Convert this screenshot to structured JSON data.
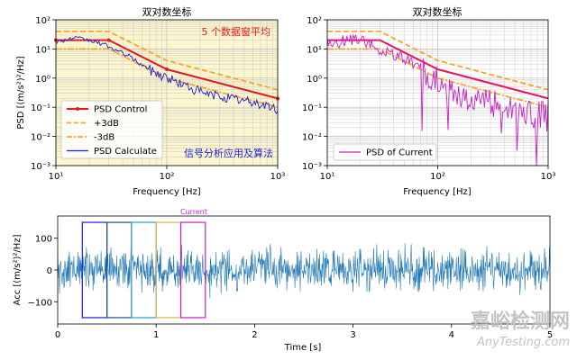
{
  "chart_data": [
    {
      "type": "line",
      "title": "双对数坐标",
      "xlabel": "Frequency [Hz]",
      "ylabel": "PSD [(m/s²)²/Hz]",
      "xscale": "log",
      "yscale": "log",
      "xlim": [
        10,
        1000
      ],
      "ylim": [
        0.001,
        100
      ],
      "xticks": [
        "10¹",
        "10²",
        "10³"
      ],
      "yticks": [
        "10⁻³",
        "10⁻²",
        "10⁻¹",
        "10⁰",
        "10¹",
        "10²"
      ],
      "annotation_top": "5 个数据窗平均",
      "annotation_bottom": "信号分析应用及算法",
      "background": "#fbf6cf",
      "legend": [
        "PSD Control",
        "+3dB",
        "-3dB",
        "PSD Calculate"
      ],
      "series": [
        {
          "name": "PSD Control",
          "color": "#e41a1c",
          "points": [
            [
              10,
              20
            ],
            [
              30,
              20
            ],
            [
              100,
              2
            ],
            [
              1000,
              0.2
            ]
          ]
        },
        {
          "name": "+3dB",
          "color": "#f5a623",
          "points": [
            [
              10,
              40
            ],
            [
              30,
              40
            ],
            [
              100,
              4
            ],
            [
              1000,
              0.4
            ]
          ]
        },
        {
          "name": "-3dB",
          "color": "#f5a623",
          "points": [
            [
              10,
              10
            ],
            [
              30,
              10
            ],
            [
              100,
              1
            ],
            [
              1000,
              0.1
            ]
          ]
        },
        {
          "name": "PSD Calculate",
          "color": "#1f1fd6",
          "points": [
            [
              10,
              18
            ],
            [
              15,
              24
            ],
            [
              20,
              20
            ],
            [
              28,
              14
            ],
            [
              35,
              9
            ],
            [
              45,
              6
            ],
            [
              55,
              3.5
            ],
            [
              70,
              2
            ],
            [
              90,
              1.3
            ],
            [
              120,
              0.8
            ],
            [
              160,
              0.5
            ],
            [
              220,
              0.3
            ],
            [
              300,
              0.25
            ],
            [
              400,
              0.2
            ],
            [
              600,
              0.15
            ],
            [
              800,
              0.12
            ],
            [
              1000,
              0.08
            ]
          ]
        }
      ]
    },
    {
      "type": "line",
      "title": "双对数坐标",
      "xlabel": "Frequency [Hz]",
      "xscale": "log",
      "yscale": "log",
      "xlim": [
        10,
        1000
      ],
      "ylim": [
        0.001,
        100
      ],
      "xticks": [
        "10¹",
        "10²",
        "10³"
      ],
      "yticks": [
        "10⁻³",
        "10⁻²",
        "10⁻¹",
        "10⁰",
        "10¹",
        "10²"
      ],
      "legend": [
        "PSD of Current"
      ],
      "series": [
        {
          "name": "PSD Control",
          "color": "#e4165a",
          "points": [
            [
              10,
              20
            ],
            [
              30,
              20
            ],
            [
              100,
              2
            ],
            [
              1000,
              0.2
            ]
          ]
        },
        {
          "name": "+3dB",
          "color": "#f5a623",
          "points": [
            [
              10,
              40
            ],
            [
              30,
              40
            ],
            [
              100,
              4
            ],
            [
              1000,
              0.4
            ]
          ]
        },
        {
          "name": "-3dB",
          "color": "#f5a623",
          "points": [
            [
              10,
              10
            ],
            [
              30,
              10
            ],
            [
              100,
              1
            ],
            [
              1000,
              0.1
            ]
          ]
        },
        {
          "name": "PSD of Current",
          "color": "#c71fc7",
          "points": [
            [
              10,
              15
            ],
            [
              20,
              25
            ],
            [
              30,
              9
            ],
            [
              50,
              5
            ],
            [
              80,
              1.5
            ],
            [
              120,
              0.6
            ],
            [
              200,
              0.2
            ],
            [
              300,
              0.15
            ],
            [
              500,
              0.1
            ],
            [
              1000,
              0.05
            ]
          ]
        }
      ]
    },
    {
      "type": "line",
      "xlabel": "Time [s]",
      "ylabel": "Acc [(m/s²)²/Hz]",
      "xlim": [
        0,
        5
      ],
      "ylim": [
        -170,
        170
      ],
      "xticks": [
        "0",
        "1",
        "2",
        "3",
        "4",
        "5"
      ],
      "yticks": [
        "−100",
        "0",
        "100"
      ],
      "series_color": "#1f77b4",
      "windows": [
        {
          "start": 0.25,
          "end": 0.5,
          "color": "#1f1fd6"
        },
        {
          "start": 0.5,
          "end": 0.75,
          "color": "#1f4e8c"
        },
        {
          "start": 0.75,
          "end": 1.0,
          "color": "#2ca0d6"
        },
        {
          "start": 1.0,
          "end": 1.25,
          "color": "#e0b44a"
        },
        {
          "start": 1.25,
          "end": 1.5,
          "color": "#c71fc7"
        }
      ],
      "window_amplitude": 150,
      "current_label": "Current"
    }
  ],
  "watermark": {
    "text": "嘉峪检测网",
    "subtext": "AnyTesting.com"
  }
}
